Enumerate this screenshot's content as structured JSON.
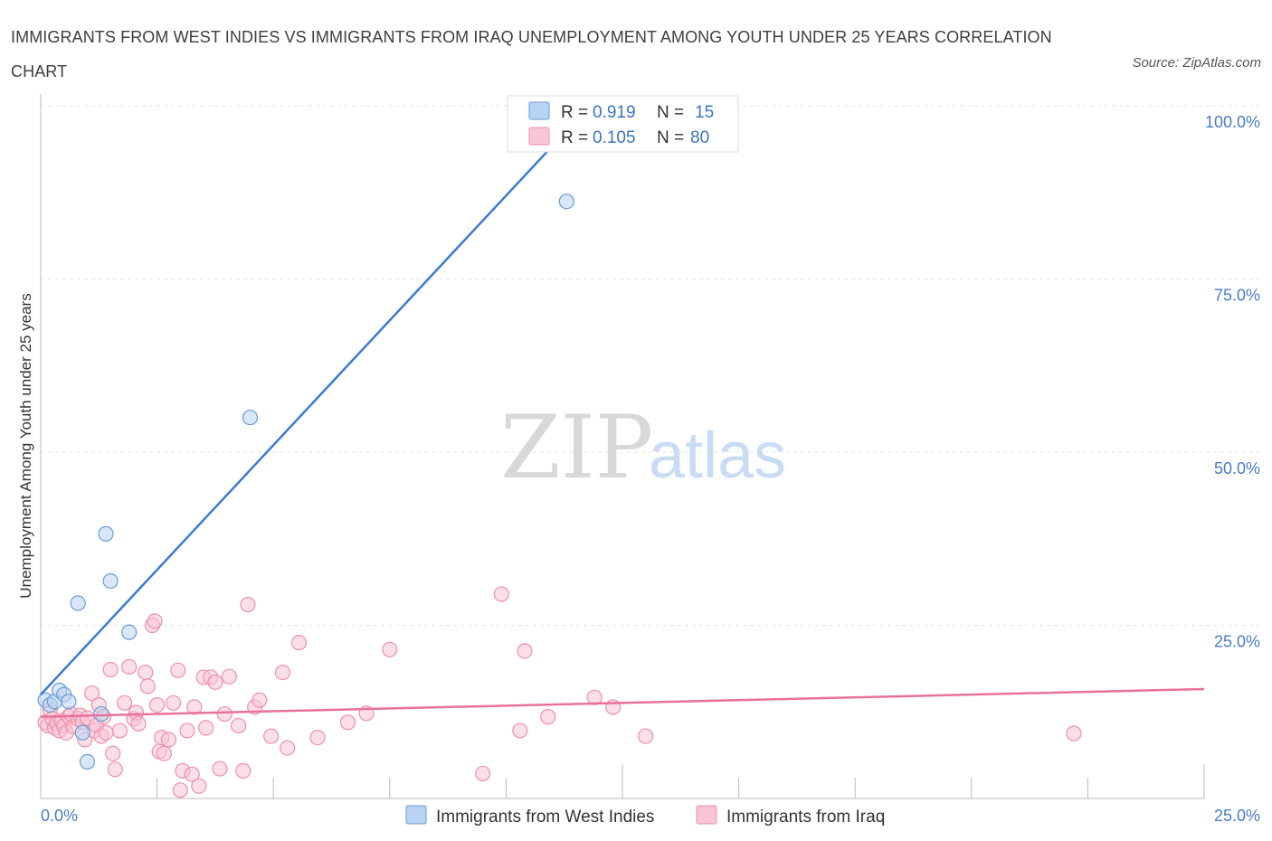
{
  "title": "IMMIGRANTS FROM WEST INDIES VS IMMIGRANTS FROM IRAQ UNEMPLOYMENT AMONG YOUTH UNDER 25 YEARS CORRELATION CHART",
  "source": "Source: ZipAtlas.com",
  "watermark": {
    "zip": "ZIP",
    "atlas": "atlas"
  },
  "colors": {
    "west_indies_fill": "#b9d3f4",
    "west_indies_stroke": "#6b9bd8",
    "west_indies_line": "#3a7bd5",
    "iraq_fill": "#f8c5d4",
    "iraq_stroke": "#ef8fad",
    "iraq_line": "#e8719a",
    "grid": "#e3e3e3",
    "axis_text": "#4a7cc9"
  },
  "legend": {
    "rows": [
      {
        "r_label": "R = ",
        "r_value": "0.919",
        "n_label": "N = ",
        "n_value": "15"
      },
      {
        "r_label": "R = ",
        "r_value": "0.105",
        "n_label": "N = ",
        "n_value": "80"
      }
    ]
  },
  "chart_data": {
    "type": "scatter",
    "title": "IMMIGRANTS FROM WEST INDIES VS IMMIGRANTS FROM IRAQ UNEMPLOYMENT AMONG YOUTH UNDER 25 YEARS CORRELATION CHART",
    "xlabel": "",
    "ylabel": "Unemployment Among Youth under 25 years",
    "xlim": [
      0,
      25
    ],
    "ylim": [
      0,
      100
    ],
    "x_tick_labels": [
      "0.0%",
      "25.0%"
    ],
    "y_ticks": [
      25,
      50,
      75,
      100
    ],
    "y_tick_labels": [
      "25.0%",
      "50.0%",
      "75.0%",
      "100.0%"
    ],
    "grid": true,
    "legend_position": "bottom-center",
    "series": [
      {
        "name": "Immigrants from West Indies",
        "R": 0.919,
        "N": 15,
        "trend": {
          "x": [
            0.0,
            11.8
          ],
          "y": [
            15.0,
            100.0
          ]
        },
        "points": [
          [
            0.1,
            14.2
          ],
          [
            0.2,
            13.5
          ],
          [
            0.3,
            14.0
          ],
          [
            0.4,
            15.6
          ],
          [
            0.5,
            15.0
          ],
          [
            0.6,
            14.0
          ],
          [
            0.8,
            28.2
          ],
          [
            0.9,
            9.5
          ],
          [
            1.0,
            5.3
          ],
          [
            1.3,
            12.2
          ],
          [
            1.4,
            38.2
          ],
          [
            1.5,
            31.4
          ],
          [
            1.9,
            24.0
          ],
          [
            4.5,
            55.0
          ],
          [
            11.3,
            86.2
          ]
        ]
      },
      {
        "name": "Immigrants from Iraq",
        "R": 0.105,
        "N": 80,
        "trend": {
          "x": [
            0.0,
            25.0
          ],
          "y": [
            11.8,
            15.8
          ]
        },
        "points": [
          [
            0.1,
            11.0
          ],
          [
            0.15,
            10.5
          ],
          [
            0.2,
            12.8
          ],
          [
            0.25,
            11.5
          ],
          [
            0.3,
            10.2
          ],
          [
            0.35,
            10.8
          ],
          [
            0.4,
            9.8
          ],
          [
            0.45,
            11.2
          ],
          [
            0.5,
            10.5
          ],
          [
            0.55,
            9.5
          ],
          [
            0.6,
            11.8
          ],
          [
            0.65,
            12.2
          ],
          [
            0.7,
            10.4
          ],
          [
            0.8,
            11.5
          ],
          [
            0.85,
            12.0
          ],
          [
            0.9,
            11.0
          ],
          [
            0.95,
            8.5
          ],
          [
            1.0,
            11.6
          ],
          [
            1.1,
            15.2
          ],
          [
            1.15,
            9.8
          ],
          [
            1.2,
            10.6
          ],
          [
            1.25,
            13.5
          ],
          [
            1.3,
            9.0
          ],
          [
            1.35,
            11.8
          ],
          [
            1.4,
            9.5
          ],
          [
            1.5,
            18.6
          ],
          [
            1.55,
            6.5
          ],
          [
            1.6,
            4.2
          ],
          [
            1.7,
            9.8
          ],
          [
            1.8,
            13.8
          ],
          [
            1.9,
            19.0
          ],
          [
            2.0,
            11.5
          ],
          [
            2.05,
            12.4
          ],
          [
            2.1,
            10.8
          ],
          [
            2.25,
            18.2
          ],
          [
            2.3,
            16.2
          ],
          [
            2.4,
            25.0
          ],
          [
            2.45,
            25.6
          ],
          [
            2.5,
            13.5
          ],
          [
            2.55,
            6.8
          ],
          [
            2.6,
            8.8
          ],
          [
            2.65,
            6.5
          ],
          [
            2.75,
            8.5
          ],
          [
            2.85,
            13.8
          ],
          [
            2.95,
            18.5
          ],
          [
            3.0,
            1.2
          ],
          [
            3.05,
            4.0
          ],
          [
            3.15,
            9.8
          ],
          [
            3.25,
            3.5
          ],
          [
            3.3,
            13.2
          ],
          [
            3.4,
            1.8
          ],
          [
            3.5,
            17.5
          ],
          [
            3.55,
            10.2
          ],
          [
            3.65,
            17.5
          ],
          [
            3.75,
            16.8
          ],
          [
            3.85,
            4.3
          ],
          [
            3.95,
            12.2
          ],
          [
            4.05,
            17.6
          ],
          [
            4.25,
            10.5
          ],
          [
            4.35,
            4.0
          ],
          [
            4.45,
            28.0
          ],
          [
            4.6,
            13.2
          ],
          [
            4.7,
            14.2
          ],
          [
            4.95,
            9.0
          ],
          [
            5.2,
            18.2
          ],
          [
            5.3,
            7.3
          ],
          [
            5.55,
            22.5
          ],
          [
            5.95,
            8.8
          ],
          [
            6.6,
            11.0
          ],
          [
            7.0,
            12.3
          ],
          [
            7.5,
            21.5
          ],
          [
            9.5,
            3.6
          ],
          [
            9.9,
            29.5
          ],
          [
            10.3,
            9.8
          ],
          [
            10.4,
            21.3
          ],
          [
            10.9,
            11.8
          ],
          [
            11.9,
            14.6
          ],
          [
            12.3,
            13.2
          ],
          [
            13.0,
            9.0
          ],
          [
            22.2,
            9.4
          ]
        ]
      }
    ]
  }
}
